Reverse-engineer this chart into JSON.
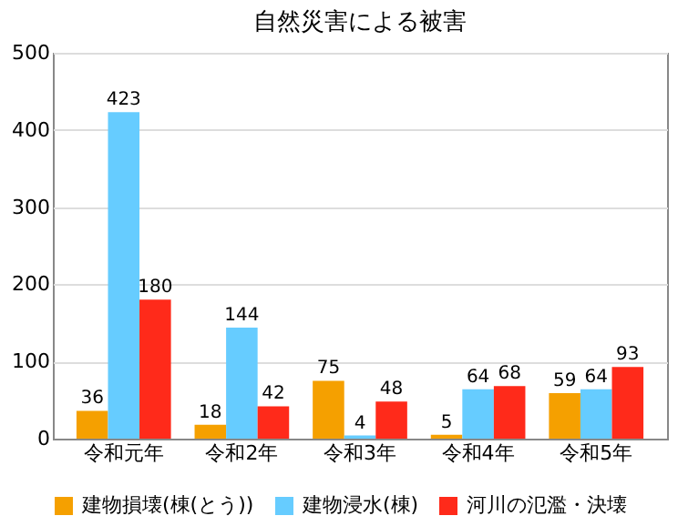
{
  "chart_data": {
    "type": "bar",
    "title": "自然災害による被害",
    "categories": [
      "令和元年",
      "令和2年",
      "令和3年",
      "令和4年",
      "令和5年"
    ],
    "series": [
      {
        "name": "建物損壊(棟(とう))",
        "color": "#f5a000",
        "values": [
          36,
          18,
          75,
          5,
          59
        ]
      },
      {
        "name": "建物浸水(棟)",
        "color": "#66ccff",
        "values": [
          423,
          144,
          4,
          64,
          64
        ]
      },
      {
        "name": "河川の氾濫・決壊",
        "color": "#ff2a1a",
        "values": [
          180,
          42,
          48,
          68,
          93
        ]
      }
    ],
    "ylim": [
      0,
      500
    ],
    "yticks": [
      0,
      100,
      200,
      300,
      400,
      500
    ],
    "grid": "y",
    "legend": "bottom",
    "data_labels": true
  }
}
